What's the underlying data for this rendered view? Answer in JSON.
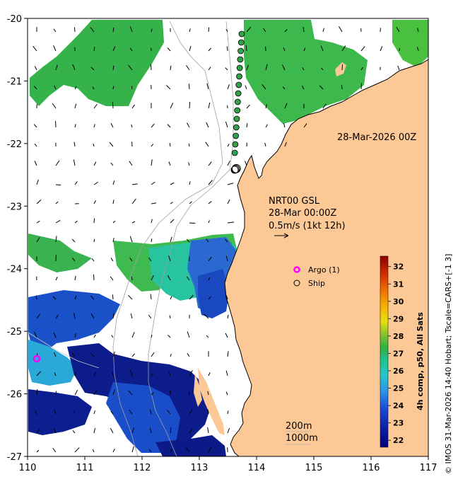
{
  "axes": {
    "x_ticks": [
      "110",
      "111",
      "112",
      "113",
      "114",
      "115",
      "116",
      "117"
    ],
    "y_ticks": [
      "-20",
      "-21",
      "-22",
      "-23",
      "-24",
      "-25",
      "-26",
      "-27"
    ],
    "lon_range": [
      110,
      117
    ],
    "lat_range": [
      -27,
      -20
    ]
  },
  "timestamp_label": "28-Mar-2026 00Z",
  "current_legend": {
    "line1": "NRT00 GSL",
    "line2": "28-Mar 00:00Z",
    "line3": "0.5m/s (1kt 12h)"
  },
  "markers": {
    "argo_label": "Argo (1)",
    "ship_label": "Ship",
    "argo_color": "#ff00ff"
  },
  "contours": {
    "label_200": "200m",
    "label_1000": "1000m"
  },
  "colorbar": {
    "title": "4h comp, p50, All Sats",
    "ticks": [
      "32",
      "31",
      "30",
      "29",
      "28",
      "27",
      "26",
      "25",
      "24",
      "23",
      "22"
    ],
    "range": [
      21.6,
      32.6
    ]
  },
  "credit": "© IMOS 31-Mar-2026 14:40 Hobart; Tscale=CARS+[-1 3]",
  "colors": {
    "land": "#fbc896",
    "green": "#34b440",
    "teal": "#22c8a8",
    "blue": "#1a58d0",
    "navy": "#0a1c88"
  }
}
